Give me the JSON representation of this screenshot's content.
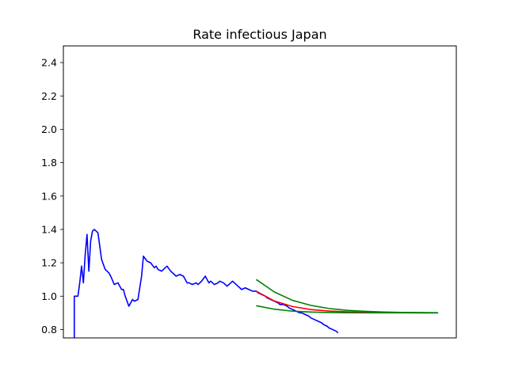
{
  "chart_data": {
    "type": "line",
    "title": "Rate infectious Japan",
    "xlabel": "",
    "ylabel": "",
    "ylim": [
      0.75,
      2.5
    ],
    "xlim": [
      -6,
      210
    ],
    "yticks": [
      "0.8",
      "1.0",
      "1.2",
      "1.4",
      "1.6",
      "1.8",
      "2.0",
      "2.2",
      "2.4"
    ],
    "ytick_values": [
      0.8,
      1.0,
      1.2,
      1.4,
      1.6,
      1.8,
      2.0,
      2.2,
      2.4
    ],
    "grid": false,
    "series": [
      {
        "color": "#0000ff",
        "x": [
          0,
          0,
          1,
          2,
          3,
          4,
          5,
          6,
          7,
          8,
          9,
          10,
          11,
          13,
          15,
          17,
          19,
          20,
          22,
          24,
          26,
          27,
          28,
          30,
          32,
          33,
          35,
          37,
          38,
          40,
          42,
          44,
          45,
          46,
          48,
          50,
          51,
          53,
          55,
          56,
          58,
          60,
          62,
          63,
          65,
          67,
          68,
          70,
          72,
          74,
          75,
          77,
          79,
          80,
          82,
          84,
          86,
          87,
          89,
          91,
          92,
          94,
          96,
          98,
          100,
          101,
          103,
          105,
          106,
          108,
          110,
          112,
          113,
          115,
          117,
          118,
          120,
          122,
          124,
          125,
          127,
          129,
          130,
          132,
          134,
          136,
          137,
          139,
          140,
          142,
          144,
          145
        ],
        "y": [
          0.74,
          1.0,
          1.0,
          1.0,
          1.08,
          1.18,
          1.08,
          1.25,
          1.37,
          1.15,
          1.33,
          1.39,
          1.4,
          1.38,
          1.22,
          1.16,
          1.14,
          1.12,
          1.07,
          1.08,
          1.04,
          1.04,
          1.0,
          0.94,
          0.98,
          0.97,
          0.98,
          1.12,
          1.24,
          1.21,
          1.2,
          1.17,
          1.18,
          1.16,
          1.15,
          1.17,
          1.18,
          1.15,
          1.13,
          1.12,
          1.13,
          1.12,
          1.08,
          1.08,
          1.07,
          1.08,
          1.07,
          1.09,
          1.12,
          1.08,
          1.09,
          1.07,
          1.08,
          1.09,
          1.08,
          1.06,
          1.08,
          1.09,
          1.07,
          1.05,
          1.04,
          1.05,
          1.04,
          1.03,
          1.03,
          1.02,
          1.01,
          1.0,
          0.99,
          0.98,
          0.97,
          0.96,
          0.95,
          0.95,
          0.94,
          0.93,
          0.92,
          0.91,
          0.9,
          0.9,
          0.89,
          0.88,
          0.87,
          0.86,
          0.85,
          0.84,
          0.83,
          0.82,
          0.81,
          0.8,
          0.79,
          0.78
        ]
      },
      {
        "color": "#ff0000",
        "x": [
          100,
          110,
          120,
          130,
          140,
          150,
          160,
          170,
          180,
          190,
          200
        ],
        "y": [
          1.03,
          0.971,
          0.938,
          0.92,
          0.911,
          0.906,
          0.903,
          0.902,
          0.901,
          0.9,
          0.9
        ]
      },
      {
        "color": "#008000",
        "x": [
          100,
          110,
          120,
          130,
          140,
          150,
          160,
          170,
          180,
          190,
          200
        ],
        "y": [
          1.1,
          1.025,
          0.975,
          0.945,
          0.926,
          0.915,
          0.909,
          0.905,
          0.903,
          0.902,
          0.901
        ]
      },
      {
        "color": "#008000",
        "x": [
          100,
          110,
          120,
          130,
          140,
          150,
          160,
          170,
          180,
          190,
          200
        ],
        "y": [
          0.943,
          0.922,
          0.91,
          0.905,
          0.902,
          0.901,
          0.9,
          0.9,
          0.9,
          0.9,
          0.9
        ]
      }
    ]
  }
}
